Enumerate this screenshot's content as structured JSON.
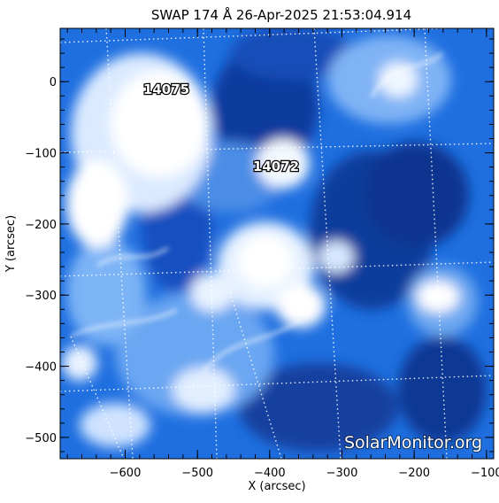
{
  "title": "SWAP 174 Å 26-Apr-2025 21:53:04.914",
  "watermark": "SolarMonitor.org",
  "colors": {
    "background": "#ffffff",
    "frame": "#000000",
    "image_dark": "#0b2f8f",
    "image_mid": "#1f6fe0",
    "image_light": "#9cc7ff",
    "image_white": "#ffffff"
  },
  "axes": {
    "xlabel": "X (arcsec)",
    "ylabel": "Y (arcsec)",
    "xlim": [
      -690,
      -90
    ],
    "ylim": [
      -530,
      75
    ],
    "x_ticks": [
      "−600",
      "−500",
      "−400",
      "−300",
      "−200",
      "−100"
    ],
    "y_ticks": [
      "0",
      "−100",
      "−200",
      "−300",
      "−400",
      "−500"
    ]
  },
  "regions": [
    {
      "label": "14075"
    },
    {
      "label": "14072"
    }
  ]
}
